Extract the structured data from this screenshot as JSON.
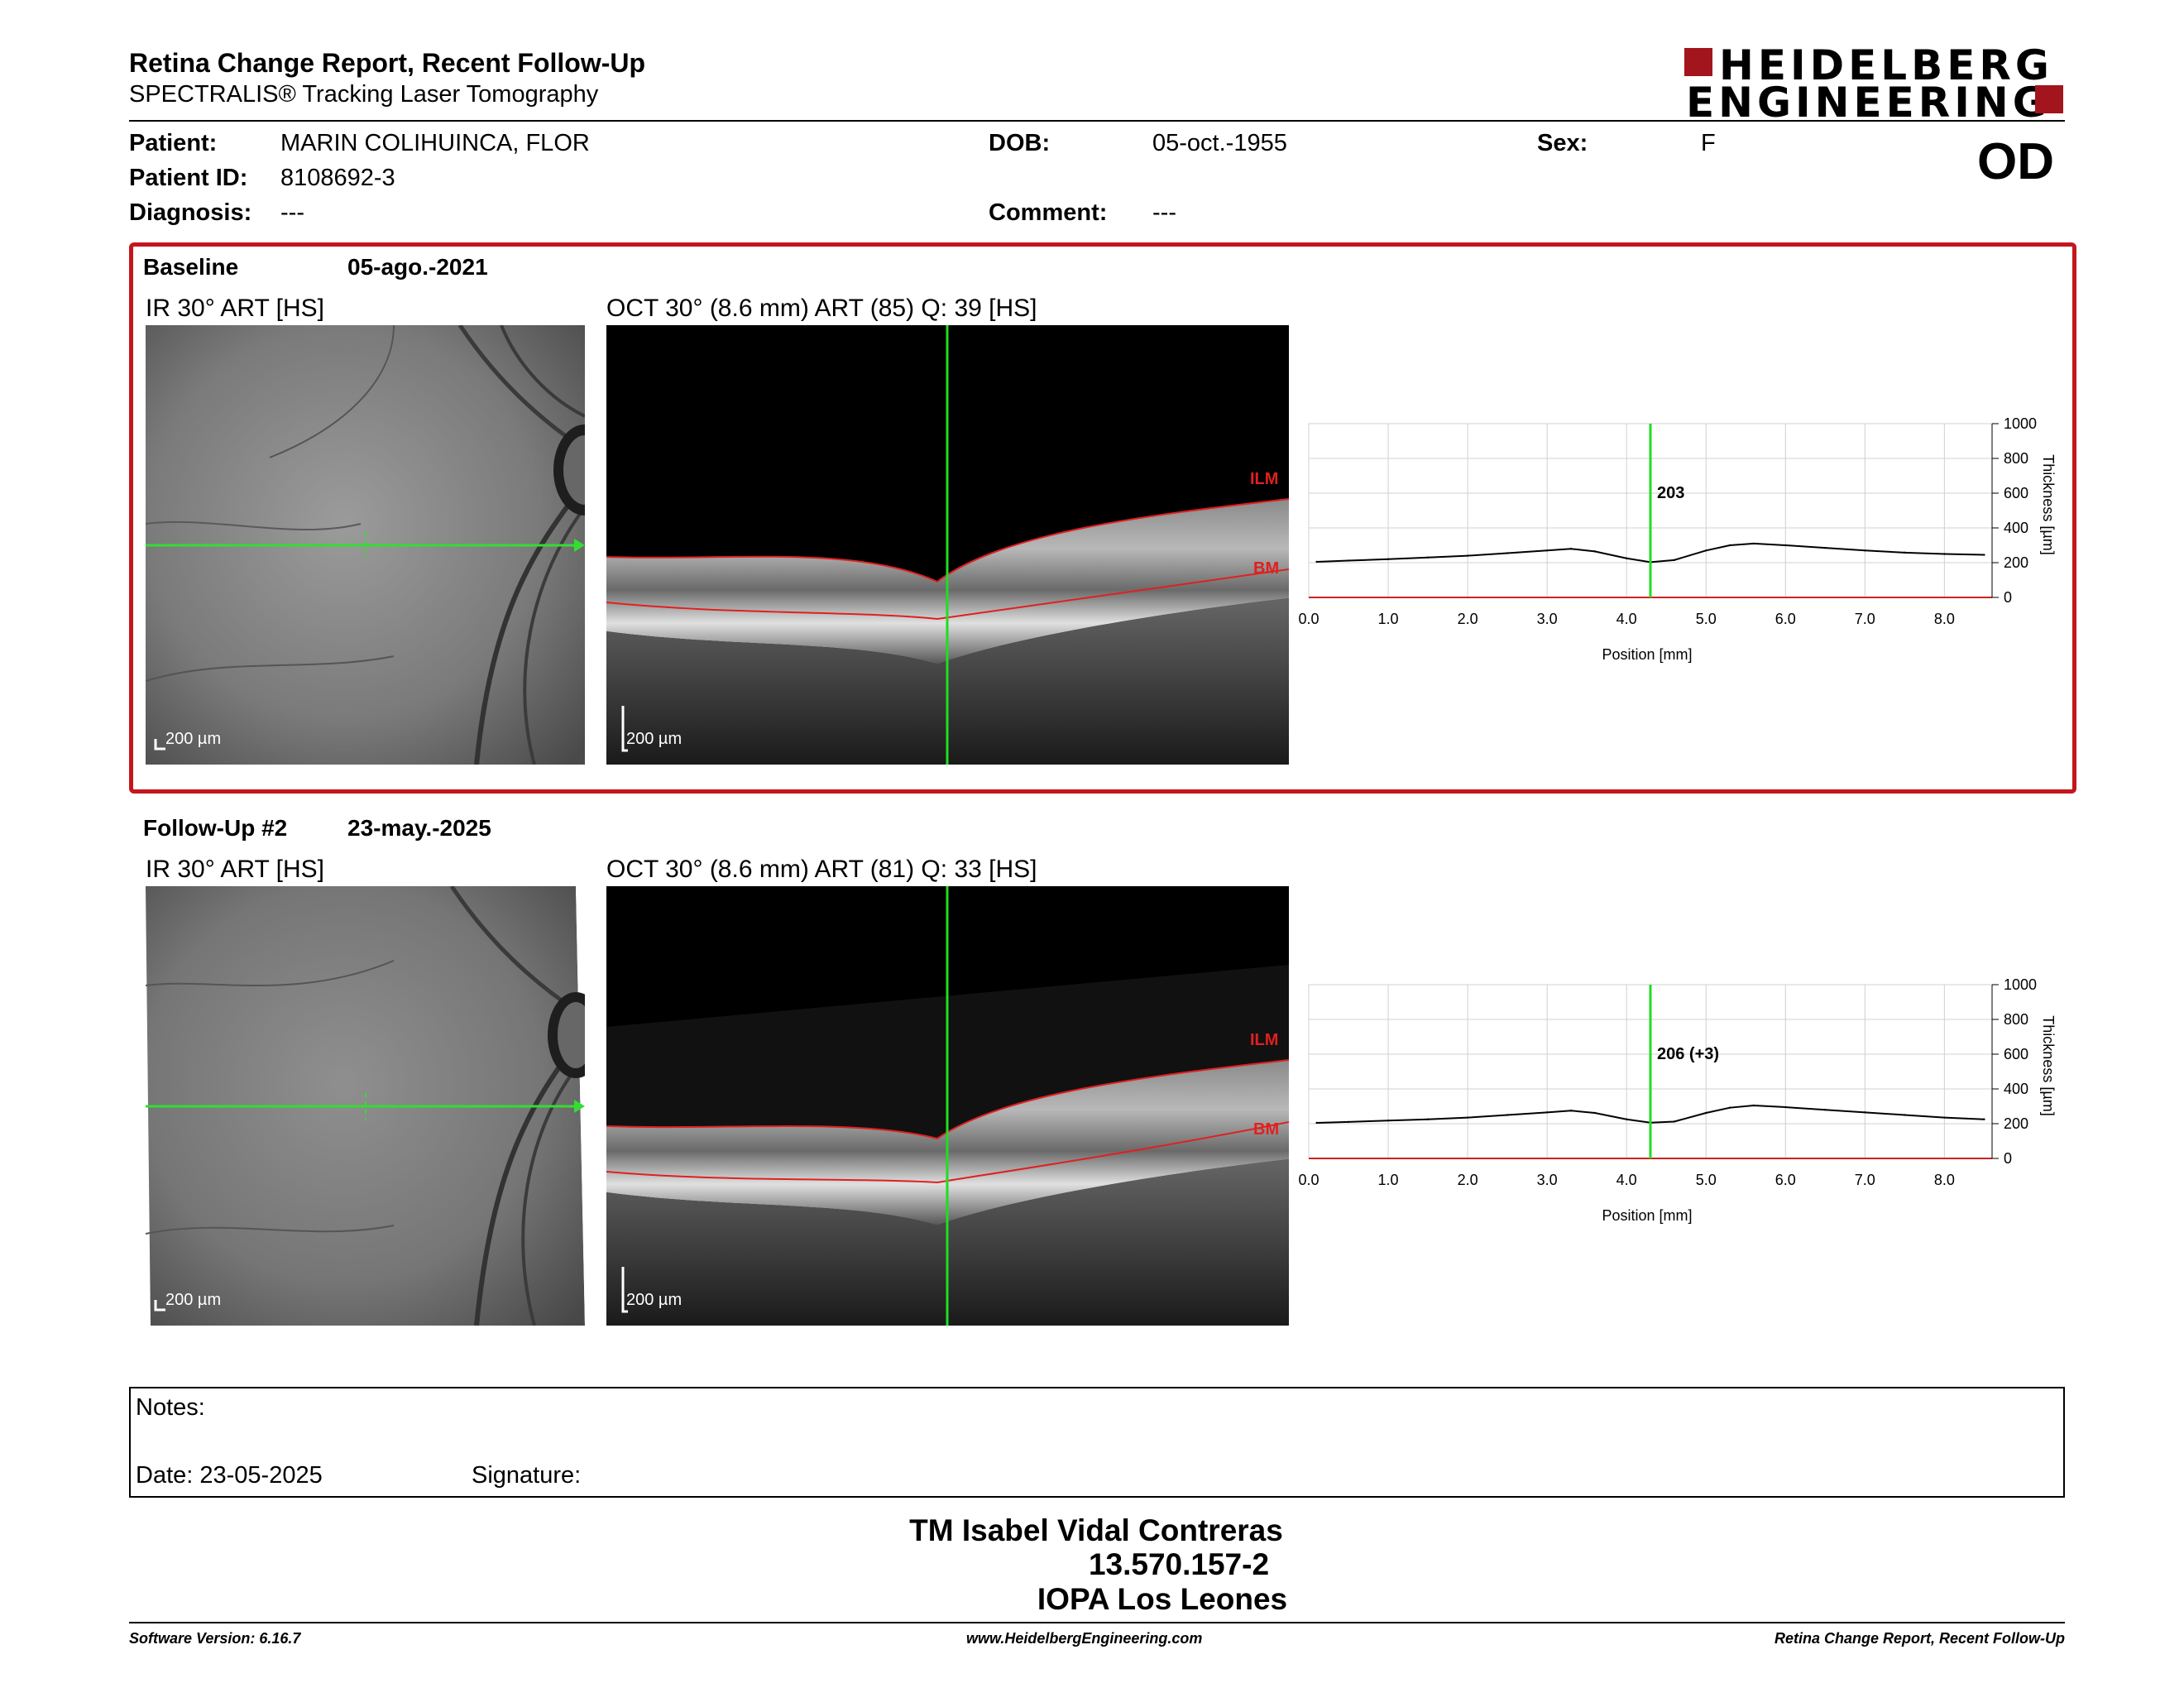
{
  "report": {
    "title": "Retina Change Report, Recent Follow-Up",
    "subtitle": "SPECTRALIS® Tracking Laser Tomography"
  },
  "logo": {
    "line1": "HEIDELBERG",
    "line2": "ENGINEERING",
    "brand_color": "#a3151d"
  },
  "patient": {
    "name_label": "Patient:",
    "name": "MARIN COLIHUINCA, FLOR",
    "id_label": "Patient ID:",
    "id": "8108692-3",
    "diagnosis_label": "Diagnosis:",
    "diagnosis": "---",
    "dob_label": "DOB:",
    "dob": "05-oct.-1955",
    "comment_label": "Comment:",
    "comment": "---",
    "sex_label": "Sex:",
    "sex": "F",
    "eye": "OD"
  },
  "baseline": {
    "label": "Baseline",
    "date": "05-ago.-2021",
    "ir_title": "IR 30° ART [HS]",
    "oct_title": "OCT 30° (8.6 mm) ART (85) Q: 39 [HS]",
    "scale_ir": "200 µm",
    "scale_oct": "200 µm",
    "ilm": "ILM",
    "bm": "BM"
  },
  "followup": {
    "label": "Follow-Up #2",
    "date": "23-may.-2025",
    "ir_title": "IR 30° ART [HS]",
    "oct_title": "OCT 30° (8.6 mm) ART (81) Q: 33 [HS]",
    "scale_ir": "200 µm",
    "scale_oct": "200 µm",
    "ilm": "ILM",
    "bm": "BM"
  },
  "notes": {
    "label": "Notes:",
    "date_label": "Date: 23-05-2025",
    "signature_label": "Signature:"
  },
  "signature": {
    "name": "TM Isabel Vidal Contreras",
    "rut": "13.570.157-2",
    "institution": "IOPA Los Leones"
  },
  "footer": {
    "left": "Software Version: 6.16.7",
    "center": "www.HeidelbergEngineering.com",
    "right": "Retina Change Report, Recent Follow-Up"
  },
  "chart_data": [
    {
      "type": "line",
      "title": "",
      "xlabel": "Position [mm]",
      "ylabel": "Thickness [µm]",
      "xlim": [
        0,
        8.6
      ],
      "ylim": [
        0,
        1000
      ],
      "xticks": [
        "0.0",
        "1.0",
        "2.0",
        "3.0",
        "4.0",
        "5.0",
        "6.0",
        "7.0",
        "8.0"
      ],
      "yticks": [
        "0",
        "200",
        "400",
        "600",
        "800",
        "1000"
      ],
      "grid": true,
      "cursor_x": 4.3,
      "cursor_label": "203",
      "series": [
        {
          "x": [
            0.1,
            0.5,
            1.0,
            1.5,
            2.0,
            2.5,
            3.0,
            3.3,
            3.6,
            4.0,
            4.3,
            4.6,
            5.0,
            5.3,
            5.6,
            6.0,
            6.5,
            7.0,
            7.5,
            8.0,
            8.5
          ],
          "values": [
            205,
            212,
            220,
            230,
            240,
            255,
            270,
            280,
            265,
            225,
            203,
            215,
            270,
            300,
            310,
            300,
            285,
            270,
            258,
            250,
            245
          ]
        }
      ]
    },
    {
      "type": "line",
      "title": "",
      "xlabel": "Position [mm]",
      "ylabel": "Thickness [µm]",
      "xlim": [
        0,
        8.6
      ],
      "ylim": [
        0,
        1000
      ],
      "xticks": [
        "0.0",
        "1.0",
        "2.0",
        "3.0",
        "4.0",
        "5.0",
        "6.0",
        "7.0",
        "8.0"
      ],
      "yticks": [
        "0",
        "200",
        "400",
        "600",
        "800",
        "1000"
      ],
      "grid": true,
      "cursor_x": 4.3,
      "cursor_label": "206 (+3)",
      "series": [
        {
          "x": [
            0.1,
            0.5,
            1.0,
            1.5,
            2.0,
            2.5,
            3.0,
            3.3,
            3.6,
            4.0,
            4.3,
            4.6,
            5.0,
            5.3,
            5.6,
            6.0,
            6.5,
            7.0,
            7.5,
            8.0,
            8.5
          ],
          "values": [
            205,
            210,
            218,
            225,
            235,
            250,
            265,
            275,
            262,
            225,
            206,
            212,
            262,
            292,
            305,
            295,
            280,
            265,
            250,
            235,
            225
          ]
        }
      ]
    }
  ]
}
